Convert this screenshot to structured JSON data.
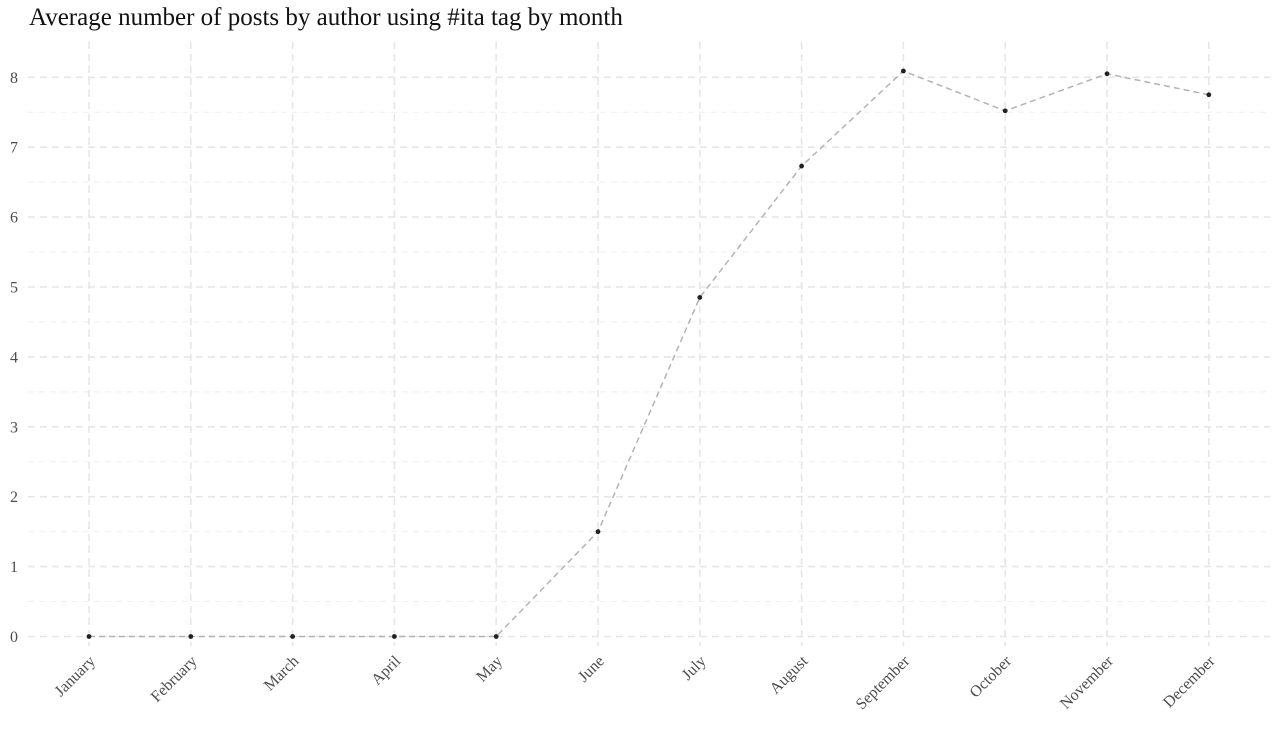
{
  "chart_data": {
    "type": "line",
    "title": "Average number of posts by author using #ita tag by month",
    "xlabel": "",
    "ylabel": "",
    "categories": [
      "January",
      "February",
      "March",
      "April",
      "May",
      "June",
      "July",
      "August",
      "September",
      "October",
      "November",
      "December"
    ],
    "series": [
      {
        "values": [
          0,
          0,
          0,
          0,
          0,
          1.5,
          4.85,
          6.73,
          8.09,
          7.52,
          8.05,
          7.75
        ]
      }
    ],
    "y_ticks": [
      0,
      1,
      2,
      3,
      4,
      5,
      6,
      7,
      8
    ],
    "ylim": [
      -0.14,
      8.45
    ],
    "grid": true,
    "line_style": "dashed",
    "line_color": "#b3b3b3",
    "point_color": "#222222",
    "grid_color": "#e6e6e6"
  }
}
